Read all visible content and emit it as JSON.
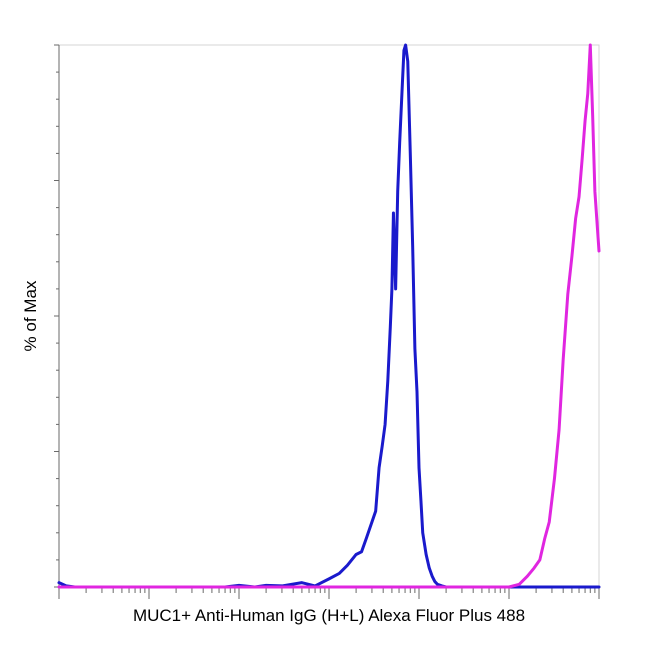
{
  "chart_data": {
    "type": "line",
    "title": "",
    "xlabel": "MUC1+ Anti-Human IgG (H+L) Alexa Fluor Plus 488",
    "ylabel": "% of Max",
    "x_scale": "log",
    "xlim": [
      1,
      1000000
    ],
    "ylim": [
      0,
      100
    ],
    "grid": false,
    "legend": "none",
    "series": [
      {
        "color": "#1a1acc",
        "x": [
          1,
          1.2,
          1.5,
          2,
          3,
          5,
          8,
          10,
          15,
          20,
          30,
          50,
          70,
          100,
          150,
          200,
          300,
          500,
          700,
          1000,
          1300,
          1600,
          2000,
          2300,
          2600,
          3000,
          3300,
          3600,
          3900,
          4200,
          4500,
          4800,
          5000,
          5200,
          5500,
          5800,
          6100,
          6500,
          6800,
          7100,
          7500,
          8000,
          8500,
          9000,
          9500,
          10000,
          10500,
          11000,
          12000,
          13000,
          14000,
          15000,
          16000,
          18000,
          20000,
          23000,
          26000,
          30000,
          40000,
          50000,
          70000,
          100000,
          150000,
          200000,
          300000,
          500000,
          1000000
        ],
        "y": [
          0.8,
          0.2,
          0,
          0,
          0,
          0,
          0,
          0,
          0,
          0,
          0,
          0,
          0,
          0.3,
          0,
          0.3,
          0.2,
          0.8,
          0.2,
          1.5,
          2.5,
          4,
          6,
          6.5,
          9,
          12,
          14,
          22,
          26,
          30,
          38,
          48,
          55,
          69,
          55,
          73,
          82,
          92,
          99,
          100,
          97,
          80,
          63,
          44,
          36,
          22,
          16,
          10,
          6,
          3.5,
          2,
          1,
          0.5,
          0.2,
          0,
          0,
          0,
          0,
          0,
          0,
          0,
          0,
          0,
          0,
          0,
          0,
          0
        ]
      },
      {
        "color": "#e026e0",
        "x": [
          1,
          100,
          1000,
          10000,
          30000,
          60000,
          80000,
          100000,
          130000,
          160000,
          190000,
          220000,
          250000,
          280000,
          320000,
          360000,
          400000,
          450000,
          500000,
          550000,
          600000,
          650000,
          700000,
          750000,
          800000,
          850000,
          900000,
          1000000
        ],
        "y": [
          0,
          0,
          0,
          0,
          0,
          0,
          0,
          0,
          0.5,
          2,
          3.5,
          5,
          9,
          12,
          20,
          29,
          42,
          54,
          61,
          68,
          72,
          79,
          86,
          91,
          100,
          87,
          73,
          62
        ]
      }
    ]
  }
}
